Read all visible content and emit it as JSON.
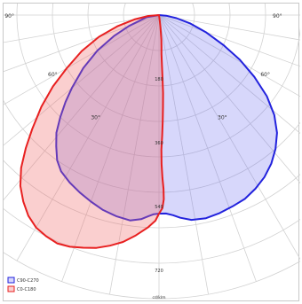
{
  "chart_data": {
    "type": "polar",
    "angle_labels": [
      {
        "angle": 90,
        "label": "90°"
      },
      {
        "angle": 60,
        "label": "60°"
      },
      {
        "angle": 30,
        "label": "30°"
      },
      {
        "angle": -90,
        "label": "90°"
      },
      {
        "angle": -60,
        "label": "60°"
      },
      {
        "angle": -30,
        "label": "30°"
      }
    ],
    "radial_ticks": [
      {
        "value": 180,
        "label": "180"
      },
      {
        "value": 360,
        "label": "360"
      },
      {
        "value": 540,
        "label": "540"
      },
      {
        "value": 720,
        "label": "720"
      }
    ],
    "unit_label": "cd/klm",
    "rmax": 800,
    "series": [
      {
        "name": "C90-C270",
        "color": "#2222dd",
        "fill": "rgba(110,110,240,0.28)",
        "points": [
          [
            -90,
            0
          ],
          [
            -80,
            35
          ],
          [
            -70,
            90
          ],
          [
            -65,
            140
          ],
          [
            -60,
            200
          ],
          [
            -55,
            260
          ],
          [
            -50,
            320
          ],
          [
            -47,
            360
          ],
          [
            -44,
            400
          ],
          [
            -41,
            440
          ],
          [
            -38,
            470
          ],
          [
            -35,
            500
          ],
          [
            -32,
            520
          ],
          [
            -28,
            535
          ],
          [
            -24,
            548
          ],
          [
            -20,
            560
          ],
          [
            -16,
            572
          ],
          [
            -12,
            580
          ],
          [
            -8,
            585
          ],
          [
            -5,
            578
          ],
          [
            -3,
            568
          ],
          [
            -1.5,
            562
          ],
          [
            0,
            560
          ],
          [
            2,
            560
          ],
          [
            4,
            566
          ],
          [
            6,
            575
          ],
          [
            9,
            585
          ],
          [
            13,
            588
          ],
          [
            17,
            584
          ],
          [
            21,
            578
          ],
          [
            25,
            572
          ],
          [
            29,
            560
          ],
          [
            33,
            545
          ],
          [
            37,
            525
          ],
          [
            41,
            500
          ],
          [
            45,
            470
          ],
          [
            49,
            430
          ],
          [
            53,
            380
          ],
          [
            57,
            320
          ],
          [
            61,
            260
          ],
          [
            65,
            200
          ],
          [
            70,
            140
          ],
          [
            75,
            90
          ],
          [
            80,
            50
          ],
          [
            85,
            20
          ],
          [
            90,
            0
          ]
        ]
      },
      {
        "name": "C0-C180",
        "color": "#e82020",
        "fill": "rgba(240,110,110,0.33)",
        "points": [
          [
            -90,
            0
          ],
          [
            -85,
            30
          ],
          [
            -80,
            70
          ],
          [
            -75,
            120
          ],
          [
            -70,
            180
          ],
          [
            -65,
            240
          ],
          [
            -60,
            300
          ],
          [
            -56,
            360
          ],
          [
            -52,
            420
          ],
          [
            -48,
            480
          ],
          [
            -45,
            530
          ],
          [
            -42,
            580
          ],
          [
            -39,
            620
          ],
          [
            -36,
            650
          ],
          [
            -33,
            675
          ],
          [
            -30,
            692
          ],
          [
            -27,
            700
          ],
          [
            -24,
            705
          ],
          [
            -21,
            700
          ],
          [
            -18,
            690
          ],
          [
            -15,
            680
          ],
          [
            -12,
            665
          ],
          [
            -9,
            648
          ],
          [
            -6,
            625
          ],
          [
            -3,
            600
          ],
          [
            -1,
            580
          ],
          [
            0,
            560
          ],
          [
            1,
            545
          ],
          [
            1.5,
            520
          ],
          [
            1.5,
            490
          ],
          [
            1.2,
            460
          ],
          [
            1,
            420
          ],
          [
            1,
            380
          ],
          [
            1.5,
            340
          ],
          [
            2,
            300
          ],
          [
            2.5,
            260
          ],
          [
            3,
            220
          ],
          [
            3.2,
            180
          ],
          [
            3.4,
            140
          ],
          [
            3.6,
            110
          ],
          [
            4.5,
            90
          ],
          [
            5.5,
            70
          ],
          [
            6,
            50
          ],
          [
            7,
            30
          ],
          [
            8,
            15
          ],
          [
            9,
            0
          ]
        ]
      }
    ]
  }
}
